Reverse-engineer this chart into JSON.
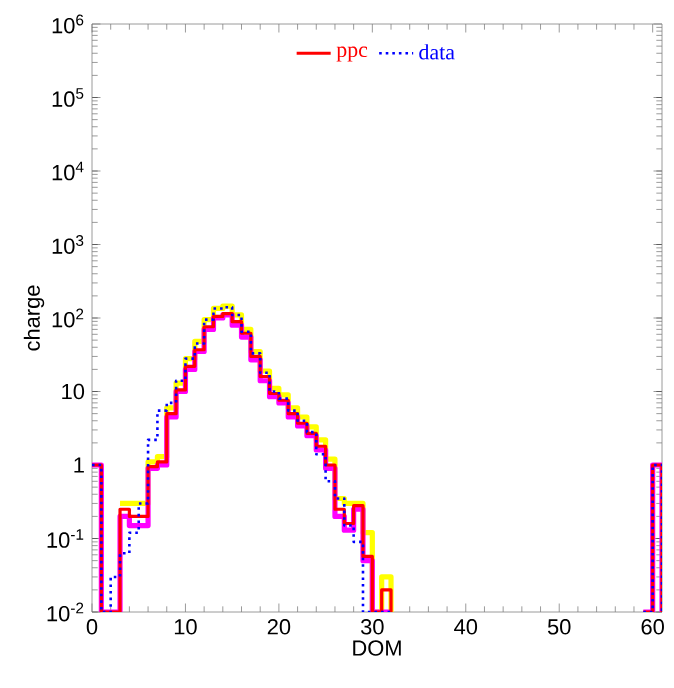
{
  "chart_data": {
    "type": "step",
    "xlabel": "DOM",
    "ylabel": "charge",
    "log": "y",
    "legend": "top",
    "marker": "none",
    "grid": false,
    "xlim": [
      0,
      61
    ],
    "ylim": [
      0.01,
      1000000
    ],
    "xticks": [
      0,
      10,
      20,
      30,
      40,
      50,
      60
    ],
    "yticks": [
      {
        "value": 0.01,
        "label": "10$^{-2}$"
      },
      {
        "value": 0.1,
        "label": "10$^{-1}$"
      },
      1,
      10,
      {
        "value": 100,
        "label": "10$^{2}$"
      },
      {
        "value": 1000,
        "label": "10$^{3}$"
      },
      {
        "value": 10000,
        "label": "10$^{4}$"
      },
      {
        "value": 100000,
        "label": "10$^{5}$"
      },
      {
        "value": 1000000,
        "label": "10$^{6}$"
      }
    ],
    "x": [
      0,
      1,
      2,
      3,
      4,
      5,
      6,
      7,
      8,
      9,
      10,
      11,
      12,
      13,
      14,
      15,
      16,
      17,
      18,
      19,
      20,
      21,
      22,
      23,
      24,
      25,
      26,
      27,
      28,
      29,
      30,
      31,
      32,
      33,
      59,
      60,
      61
    ],
    "series": [
      {
        "color": "#ffff00",
        "line_style": "solid",
        "values": [
          null,
          null,
          null,
          0.3,
          0.3,
          0.3,
          1.1,
          1.3,
          6,
          13,
          28,
          48,
          95,
          135,
          145,
          110,
          70,
          35,
          19,
          11,
          9,
          6,
          4.5,
          3.3,
          2.2,
          1.2,
          0.35,
          0.3,
          0.3,
          0.12,
          0.01,
          0.03,
          0.01,
          null,
          null,
          null,
          null
        ]
      },
      {
        "color": "#ff00ff",
        "line_style": "solid",
        "values": [
          1,
          0.01,
          0.01,
          0.2,
          0.15,
          0.15,
          0.9,
          1,
          4.5,
          10,
          20,
          35,
          70,
          100,
          110,
          80,
          55,
          27,
          14,
          8.5,
          7,
          4.5,
          3.4,
          2.5,
          1.6,
          0.9,
          0.2,
          0.13,
          0.25,
          0.05,
          0.01,
          0.01,
          0.01,
          null,
          0.01,
          1,
          0.01
        ]
      },
      {
        "name": "ppc",
        "color": "#ff0000",
        "line_style": "solid",
        "values": [
          1,
          0.01,
          0.01,
          0.25,
          0.2,
          0.2,
          0.95,
          1.1,
          5,
          10.5,
          22,
          37,
          76,
          105,
          115,
          89,
          62,
          30,
          16,
          9.4,
          7.6,
          5,
          3.7,
          2.7,
          1.8,
          1,
          0.25,
          0.16,
          0.28,
          0.057,
          0.01,
          0.02,
          0.01,
          null,
          0.01,
          1,
          0.01
        ]
      },
      {
        "name": "data",
        "color": "#0000ff",
        "line_style": "dotted",
        "values": [
          1,
          0.01,
          0.03,
          0.063,
          0.12,
          0.3,
          2.2,
          5.5,
          7,
          14,
          28,
          45,
          95,
          135,
          140,
          110,
          65,
          33,
          18,
          10,
          8,
          5.5,
          4,
          2.8,
          1.4,
          0.6,
          0.35,
          0.15,
          0.09,
          0.01,
          0.01,
          0.01,
          0.01,
          null,
          0.01,
          1,
          0.01
        ]
      }
    ]
  }
}
